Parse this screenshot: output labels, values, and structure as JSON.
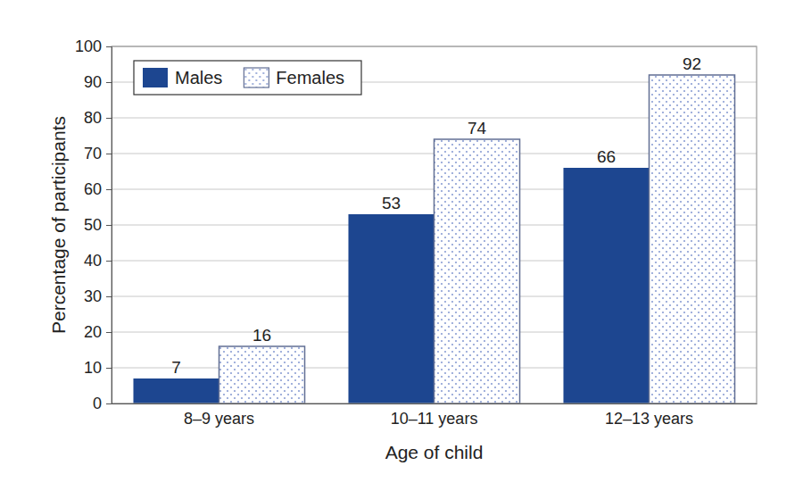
{
  "chart_data": {
    "type": "bar",
    "categories": [
      "8–9 years",
      "10–11 years",
      "12–13 years"
    ],
    "series": [
      {
        "name": "Males",
        "color": "#1d4690",
        "values": [
          7,
          53,
          66
        ]
      },
      {
        "name": "Females",
        "color": "#8c9fd4",
        "values": [
          16,
          74,
          92
        ]
      }
    ],
    "x_label": "Age of child",
    "y_label": "Percentage of participants",
    "ylim": [
      0,
      100
    ],
    "yticks": [
      0,
      10,
      20,
      30,
      40,
      50,
      60,
      70,
      80,
      90,
      100
    ],
    "grid": true,
    "legend": "upper left",
    "data_labels": true
  }
}
